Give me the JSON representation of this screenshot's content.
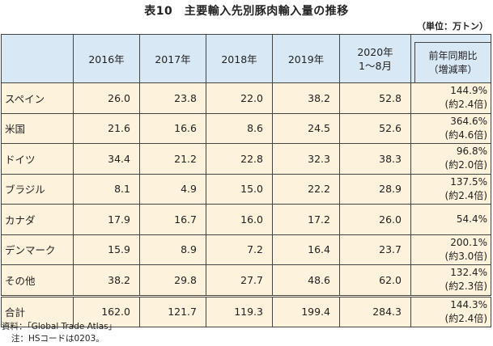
{
  "title": "表10　主要輸入先別豚肉輸入量の推移",
  "unit": "（単位：万トン）",
  "columns": [
    "2016年",
    "2017年",
    "2018年",
    "2019年"
  ],
  "col2020": {
    "line1": "2020年",
    "line2": "1～8月"
  },
  "colChange": {
    "line1": "前年同期比",
    "line2": "（増減率）"
  },
  "rows": [
    {
      "label": "スペイン",
      "values": [
        "26.0",
        "23.8",
        "22.0",
        "38.2",
        "52.8"
      ],
      "change": "144.9%",
      "ratio": "(約2.4倍)"
    },
    {
      "label": "米国",
      "values": [
        "21.6",
        "16.6",
        "8.6",
        "24.5",
        "52.6"
      ],
      "change": "364.6%",
      "ratio": "(約4.6倍)"
    },
    {
      "label": "ドイツ",
      "values": [
        "34.4",
        "21.2",
        "22.8",
        "32.3",
        "38.3"
      ],
      "change": "96.8%",
      "ratio": "(約2.0倍)"
    },
    {
      "label": "ブラジル",
      "values": [
        "8.1",
        "4.9",
        "15.0",
        "22.2",
        "28.9"
      ],
      "change": "137.5%",
      "ratio": "(約2.4倍)"
    },
    {
      "label": "カナダ",
      "values": [
        "17.9",
        "16.7",
        "16.0",
        "17.2",
        "26.0"
      ],
      "change": "54.4%",
      "ratio": ""
    },
    {
      "label": "デンマーク",
      "values": [
        "15.9",
        "8.9",
        "7.2",
        "16.4",
        "23.7"
      ],
      "change": "200.1%",
      "ratio": "(約3.0倍)"
    },
    {
      "label": "その他",
      "values": [
        "38.2",
        "29.8",
        "27.7",
        "48.6",
        "62.0"
      ],
      "change": "132.4%",
      "ratio": "(約2.3倍)"
    },
    {
      "label": "合計",
      "values": [
        "162.0",
        "121.7",
        "119.3",
        "199.4",
        "284.3"
      ],
      "change": "144.3%",
      "ratio": "(約2.4倍)"
    }
  ],
  "notes": {
    "source": "資料：「Global Trade Atlas」",
    "note": "注：HSコードは0203。"
  }
}
